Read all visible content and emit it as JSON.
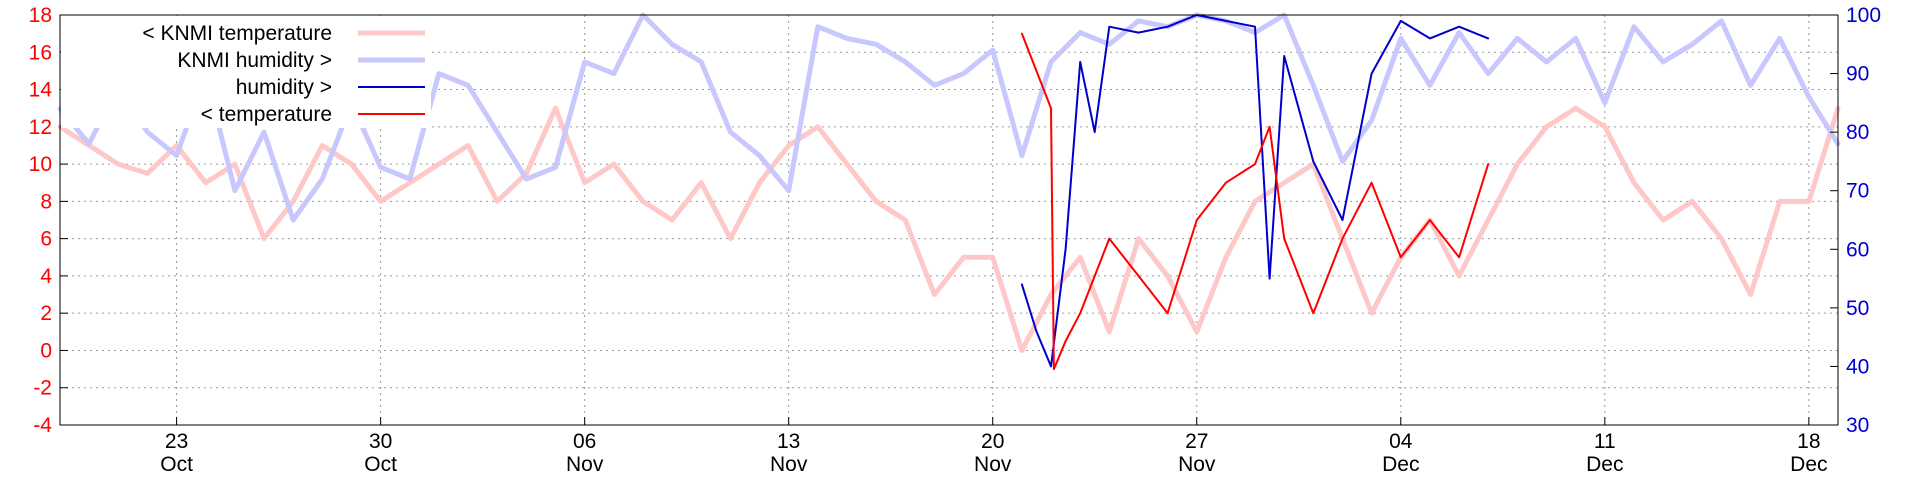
{
  "chart_data": {
    "type": "line",
    "x_range": [
      "2016-10-19",
      "2016-12-19"
    ],
    "y_left": {
      "min": -4,
      "max": 18,
      "ticks": [
        -4,
        -2,
        0,
        2,
        4,
        6,
        8,
        10,
        12,
        14,
        16,
        18
      ],
      "color": "#ff0000"
    },
    "y_right": {
      "min": 30,
      "max": 100,
      "ticks": [
        30,
        40,
        50,
        60,
        70,
        80,
        90,
        100
      ],
      "color": "#0000cc"
    },
    "grid": true,
    "legend_position": "top-left",
    "x_ticks": [
      {
        "date": "2016-10-23",
        "day": "23",
        "month": "Oct"
      },
      {
        "date": "2016-10-30",
        "day": "30",
        "month": "Oct"
      },
      {
        "date": "2016-11-06",
        "day": "06",
        "month": "Nov"
      },
      {
        "date": "2016-11-13",
        "day": "13",
        "month": "Nov"
      },
      {
        "date": "2016-11-20",
        "day": "20",
        "month": "Nov"
      },
      {
        "date": "2016-11-27",
        "day": "27",
        "month": "Nov"
      },
      {
        "date": "2016-12-04",
        "day": "04",
        "month": "Dec"
      },
      {
        "date": "2016-12-11",
        "day": "11",
        "month": "Dec"
      },
      {
        "date": "2016-12-18",
        "day": "18",
        "month": "Dec"
      }
    ],
    "series": [
      {
        "name": "< KNMI temperature",
        "axis": "left",
        "color": "#ffc8c8",
        "width": 5,
        "x": [
          "2016-10-19",
          "2016-10-20",
          "2016-10-21",
          "2016-10-22",
          "2016-10-23",
          "2016-10-24",
          "2016-10-25",
          "2016-10-26",
          "2016-10-27",
          "2016-10-28",
          "2016-10-29",
          "2016-10-30",
          "2016-10-31",
          "2016-11-01",
          "2016-11-02",
          "2016-11-03",
          "2016-11-04",
          "2016-11-05",
          "2016-11-06",
          "2016-11-07",
          "2016-11-08",
          "2016-11-09",
          "2016-11-10",
          "2016-11-11",
          "2016-11-12",
          "2016-11-13",
          "2016-11-14",
          "2016-11-15",
          "2016-11-16",
          "2016-11-17",
          "2016-11-18",
          "2016-11-19",
          "2016-11-20",
          "2016-11-21",
          "2016-11-22",
          "2016-11-23",
          "2016-11-24",
          "2016-11-25",
          "2016-11-26",
          "2016-11-27",
          "2016-11-28",
          "2016-11-29",
          "2016-11-30",
          "2016-12-01",
          "2016-12-02",
          "2016-12-03",
          "2016-12-04",
          "2016-12-05",
          "2016-12-06",
          "2016-12-07",
          "2016-12-08",
          "2016-12-09",
          "2016-12-10",
          "2016-12-11",
          "2016-12-12",
          "2016-12-13",
          "2016-12-14",
          "2016-12-15",
          "2016-12-16",
          "2016-12-17",
          "2016-12-18",
          "2016-12-19"
        ],
        "y": [
          12,
          11,
          10,
          9.5,
          11,
          9,
          10,
          6,
          8,
          11,
          10,
          8,
          9,
          10,
          11,
          8,
          9.5,
          13,
          9,
          10,
          8,
          7,
          9,
          6,
          9,
          11,
          12,
          10,
          8,
          7,
          3,
          5,
          5,
          0,
          3,
          5,
          1,
          6,
          4,
          1,
          5,
          8,
          9,
          10,
          6,
          2,
          5,
          7,
          4,
          7,
          10,
          12,
          13,
          12,
          9,
          7,
          8,
          6,
          3,
          8,
          8,
          13
        ],
        "show_in_legend": true
      },
      {
        "name": "KNMI humidity >",
        "axis": "right",
        "color": "#c8c8ff",
        "width": 5,
        "x": [
          "2016-10-19",
          "2016-10-20",
          "2016-10-21",
          "2016-10-22",
          "2016-10-23",
          "2016-10-24",
          "2016-10-25",
          "2016-10-26",
          "2016-10-27",
          "2016-10-28",
          "2016-10-29",
          "2016-10-30",
          "2016-10-31",
          "2016-11-01",
          "2016-11-02",
          "2016-11-03",
          "2016-11-04",
          "2016-11-05",
          "2016-11-06",
          "2016-11-07",
          "2016-11-08",
          "2016-11-09",
          "2016-11-10",
          "2016-11-11",
          "2016-11-12",
          "2016-11-13",
          "2016-11-14",
          "2016-11-15",
          "2016-11-16",
          "2016-11-17",
          "2016-11-18",
          "2016-11-19",
          "2016-11-20",
          "2016-11-21",
          "2016-11-22",
          "2016-11-23",
          "2016-11-24",
          "2016-11-25",
          "2016-11-26",
          "2016-11-27",
          "2016-11-28",
          "2016-11-29",
          "2016-11-30",
          "2016-12-01",
          "2016-12-02",
          "2016-12-03",
          "2016-12-04",
          "2016-12-05",
          "2016-12-06",
          "2016-12-07",
          "2016-12-08",
          "2016-12-09",
          "2016-12-10",
          "2016-12-11",
          "2016-12-12",
          "2016-12-13",
          "2016-12-14",
          "2016-12-15",
          "2016-12-16",
          "2016-12-17",
          "2016-12-18",
          "2016-12-19"
        ],
        "y": [
          84,
          78,
          88,
          80,
          76,
          90,
          70,
          80,
          65,
          72,
          85,
          74,
          72,
          90,
          88,
          80,
          72,
          74,
          92,
          90,
          100,
          95,
          92,
          80,
          76,
          70,
          98,
          96,
          95,
          92,
          88,
          90,
          94,
          76,
          92,
          97,
          95,
          99,
          98,
          100,
          99,
          97,
          100,
          88,
          75,
          82,
          96,
          88,
          97,
          90,
          96,
          92,
          96,
          85,
          98,
          92,
          95,
          99,
          88,
          96,
          86,
          78
        ],
        "show_in_legend": true
      },
      {
        "name": "humidity >",
        "axis": "right",
        "color": "#0000cc",
        "width": 2,
        "x": [
          "2016-11-21",
          "2016-11-21.5",
          "2016-11-22",
          "2016-11-22.5",
          "2016-11-23",
          "2016-11-23.5",
          "2016-11-24",
          "2016-11-25",
          "2016-11-26",
          "2016-11-27",
          "2016-11-28",
          "2016-11-29",
          "2016-11-29.5",
          "2016-11-30",
          "2016-12-01",
          "2016-12-02",
          "2016-12-03",
          "2016-12-04",
          "2016-12-05",
          "2016-12-06",
          "2016-12-07"
        ],
        "y": [
          54,
          46,
          40,
          60,
          92,
          80,
          98,
          97,
          98,
          100,
          99,
          98,
          55,
          93,
          75,
          65,
          90,
          99,
          96,
          98,
          96
        ],
        "show_in_legend": true
      },
      {
        "name": "< temperature",
        "axis": "left",
        "color": "#ff0000",
        "width": 2,
        "x": [
          "2016-11-21",
          "2016-11-22",
          "2016-11-22.1",
          "2016-11-22.5",
          "2016-11-23",
          "2016-11-24",
          "2016-11-25",
          "2016-11-26",
          "2016-11-27",
          "2016-11-28",
          "2016-11-29",
          "2016-11-29.5",
          "2016-11-30",
          "2016-12-01",
          "2016-12-02",
          "2016-12-03",
          "2016-12-04",
          "2016-12-05",
          "2016-12-06",
          "2016-12-07"
        ],
        "y": [
          17,
          13,
          -1,
          0.5,
          2,
          6,
          4,
          2,
          7,
          9,
          10,
          12,
          6,
          2,
          6,
          9,
          5,
          7,
          5,
          10
        ],
        "show_in_legend": true
      }
    ]
  },
  "legend": {
    "items": [
      {
        "label": "< KNMI temperature",
        "color": "#ffc8c8",
        "width": 5
      },
      {
        "label": "KNMI humidity >",
        "color": "#c8c8ff",
        "width": 5
      },
      {
        "label": "humidity >",
        "color": "#0000cc",
        "width": 2
      },
      {
        "label": "< temperature",
        "color": "#ff0000",
        "width": 2
      }
    ]
  }
}
